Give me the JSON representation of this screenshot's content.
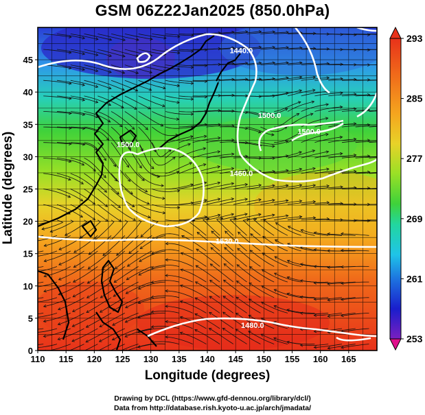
{
  "title": "GSM 06Z22Jan2025 (850.0hPa)",
  "x_axis": {
    "label": "Longitude (degrees)",
    "range": [
      110,
      170
    ],
    "ticks": [
      110,
      115,
      120,
      125,
      130,
      135,
      140,
      145,
      150,
      155,
      160,
      165
    ]
  },
  "y_axis": {
    "label": "Latitude  (degrees)",
    "range": [
      0,
      50
    ],
    "ticks": [
      0,
      5,
      10,
      15,
      20,
      25,
      30,
      35,
      40,
      45
    ]
  },
  "colorbar": {
    "range": [
      253,
      293
    ],
    "ticks": [
      293,
      285,
      277,
      269,
      261,
      253
    ],
    "colors": [
      "#e0108c",
      "#7a1fc0",
      "#1a1ecc",
      "#1d74e0",
      "#1fc4e8",
      "#22d6a0",
      "#3fd23a",
      "#9ae026",
      "#f0d428",
      "#f5a51e",
      "#f06a1a",
      "#e8321a"
    ]
  },
  "contour_labels": [
    {
      "text": "1440.0",
      "lon": 146,
      "lat": 46
    },
    {
      "text": "1500.0",
      "lon": 151,
      "lat": 36
    },
    {
      "text": "1500.0",
      "lon": 158,
      "lat": 33.5
    },
    {
      "text": "1500.0",
      "lon": 126,
      "lat": 31.5
    },
    {
      "text": "1460.0",
      "lon": 146,
      "lat": 27
    },
    {
      "text": "1520.0",
      "lon": 143.5,
      "lat": 16.5
    },
    {
      "text": "1480.0",
      "lon": 148,
      "lat": 3.5
    }
  ],
  "credits": {
    "line1": "Drawing by DCL (https://www.gfd-dennou.org/library/dcl/)",
    "line2": "Data from http://database.rish.kyoto-u.ac.jp/arch/jmadata/"
  }
}
